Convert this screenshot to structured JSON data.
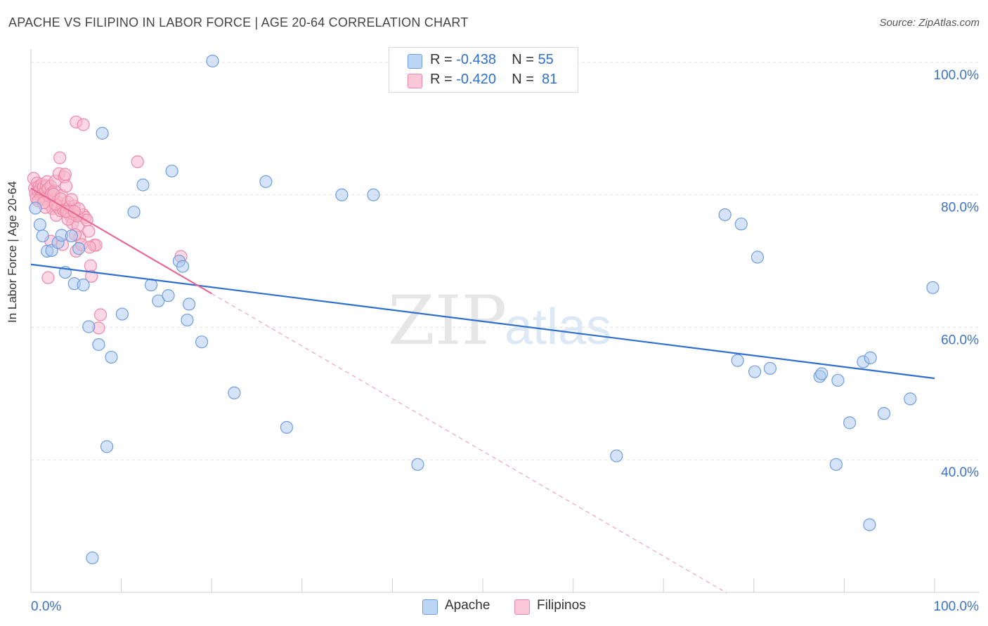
{
  "title": "APACHE VS FILIPINO IN LABOR FORCE | AGE 20-64 CORRELATION CHART",
  "source": "Source: ZipAtlas.com",
  "watermark": {
    "zip": "ZIP",
    "atlas": "atlas"
  },
  "legend": {
    "apache": {
      "r_label": "R =",
      "r_value": "-0.438",
      "n_label": "N =",
      "n_value": "55"
    },
    "filipinos": {
      "r_label": "R =",
      "r_value": "-0.420",
      "n_label": "N =",
      "n_value": "81"
    }
  },
  "bottom_legend": {
    "apache": "Apache",
    "filipinos": "Filipinos"
  },
  "colors": {
    "apache_fill": "#a9c8f0",
    "apache_stroke": "#6e9ee0",
    "apache_line": "#2f6fd0",
    "filipino_fill": "#f7b8cc",
    "filipino_stroke": "#ee88a8",
    "filipino_line": "#e86890",
    "tick_label": "#3b73c8",
    "grid": "#e2e2e2"
  },
  "chart_data": {
    "type": "scatter",
    "ylabel": "In Labor Force | Age 20-64",
    "x_tick_labels": [
      "0.0%",
      "100.0%"
    ],
    "y_tick_labels": [
      "100.0%",
      "80.0%",
      "60.0%",
      "40.0%"
    ],
    "xlim": [
      0,
      100
    ],
    "ylim": [
      20,
      102
    ],
    "y_ticks": [
      100,
      80,
      60,
      40
    ],
    "x_minor_ticks": [
      0,
      10,
      20,
      30,
      40,
      50,
      60,
      70,
      80,
      90,
      100
    ],
    "grid": true,
    "series": [
      {
        "name": "Apache",
        "trend": {
          "x": [
            0,
            100
          ],
          "y": [
            69.5,
            52.3
          ],
          "style": "solid"
        },
        "points": [
          [
            0.5,
            78
          ],
          [
            1,
            75.5
          ],
          [
            1.3,
            73.8
          ],
          [
            1.8,
            71.5
          ],
          [
            2.3,
            71.6
          ],
          [
            3,
            72.8
          ],
          [
            3.4,
            73.9
          ],
          [
            3.8,
            68.3
          ],
          [
            4.5,
            73.8
          ],
          [
            4.8,
            66.6
          ],
          [
            5.3,
            71.9
          ],
          [
            5.8,
            66.4
          ],
          [
            6.4,
            60.1
          ],
          [
            7.5,
            57.4
          ],
          [
            7.9,
            89.3
          ],
          [
            8.4,
            42.0
          ],
          [
            8.9,
            55.5
          ],
          [
            6.8,
            25.2
          ],
          [
            10.1,
            62.0
          ],
          [
            11.4,
            77.4
          ],
          [
            12.4,
            81.5
          ],
          [
            13.3,
            66.4
          ],
          [
            14.1,
            64.0
          ],
          [
            15.2,
            64.8
          ],
          [
            15.6,
            83.6
          ],
          [
            16.4,
            70.0
          ],
          [
            16.8,
            69.2
          ],
          [
            17.3,
            61.1
          ],
          [
            17.5,
            63.5
          ],
          [
            18.9,
            57.8
          ],
          [
            20.1,
            100.2
          ],
          [
            22.5,
            50.1
          ],
          [
            26,
            82
          ],
          [
            28.3,
            44.9
          ],
          [
            34.4,
            80
          ],
          [
            37.9,
            80
          ],
          [
            42.8,
            39.3
          ],
          [
            64.8,
            40.6
          ],
          [
            76.8,
            77
          ],
          [
            78.6,
            75.6
          ],
          [
            80.4,
            70.6
          ],
          [
            78.2,
            55
          ],
          [
            80.1,
            53.3
          ],
          [
            81.8,
            53.8
          ],
          [
            87.3,
            52.6
          ],
          [
            87.5,
            53.0
          ],
          [
            89.3,
            52.0
          ],
          [
            89.1,
            39.3
          ],
          [
            90.6,
            45.6
          ],
          [
            92.1,
            54.8
          ],
          [
            92.9,
            55.4
          ],
          [
            92.8,
            30.2
          ],
          [
            94.4,
            47.0
          ],
          [
            97.3,
            49.2
          ],
          [
            99.8,
            66
          ]
        ]
      },
      {
        "name": "Filipinos",
        "trend": {
          "x": [
            0,
            20
          ],
          "y": [
            81,
            65.1
          ],
          "style": "solid"
        },
        "trend_extension": {
          "x": [
            20,
            77
          ],
          "y": [
            65.1,
            19.9
          ],
          "style": "dashed"
        },
        "points": [
          [
            0.3,
            82.5
          ],
          [
            0.4,
            81
          ],
          [
            0.5,
            80.2
          ],
          [
            0.6,
            79.5
          ],
          [
            0.7,
            81.8
          ],
          [
            0.8,
            80.5
          ],
          [
            0.9,
            81.3
          ],
          [
            1,
            80.8
          ],
          [
            1.1,
            79.8
          ],
          [
            1.2,
            81.6
          ],
          [
            1.3,
            80.2
          ],
          [
            1.4,
            81.2
          ],
          [
            1.5,
            79.4
          ],
          [
            1.6,
            80.6
          ],
          [
            1.7,
            81.4
          ],
          [
            1.8,
            82
          ],
          [
            1.9,
            80.9
          ],
          [
            2,
            78.6
          ],
          [
            2.1,
            79.8
          ],
          [
            2.2,
            81.3
          ],
          [
            2.3,
            80.2
          ],
          [
            2.4,
            77.9
          ],
          [
            2.5,
            79.2
          ],
          [
            2.6,
            80.6
          ],
          [
            2.7,
            82.1
          ],
          [
            2.8,
            76.9
          ],
          [
            2.9,
            79
          ],
          [
            3,
            78.1
          ],
          [
            3.1,
            83.2
          ],
          [
            3.2,
            85.6
          ],
          [
            3.3,
            77.6
          ],
          [
            3.4,
            79.9
          ],
          [
            3.5,
            78.3
          ],
          [
            3.6,
            77.7
          ],
          [
            3.7,
            82.7
          ],
          [
            3.8,
            83.1
          ],
          [
            3.9,
            81.3
          ],
          [
            4,
            77.4
          ],
          [
            4.1,
            78.9
          ],
          [
            4.2,
            77.2
          ],
          [
            4.3,
            78.2
          ],
          [
            4.4,
            76.7
          ],
          [
            4.5,
            77.8
          ],
          [
            4.6,
            75.7
          ],
          [
            4.7,
            77.1
          ],
          [
            4.8,
            78.3
          ],
          [
            5,
            71.5
          ],
          [
            5.2,
            75.3
          ],
          [
            5.4,
            73.6
          ],
          [
            5.6,
            72.5
          ],
          [
            5.8,
            77
          ],
          [
            6,
            76.6
          ],
          [
            6.2,
            76.2
          ],
          [
            6.4,
            74.5
          ],
          [
            6.6,
            69.3
          ],
          [
            6.7,
            67.7
          ],
          [
            7,
            72.4
          ],
          [
            7.2,
            72.4
          ],
          [
            7.5,
            59.9
          ],
          [
            7.7,
            61.9
          ],
          [
            1.9,
            67.5
          ],
          [
            2.2,
            73
          ],
          [
            3.5,
            72.5
          ],
          [
            4.9,
            74
          ],
          [
            5.1,
            76.8
          ],
          [
            5.3,
            77.9
          ],
          [
            1.6,
            78.1
          ],
          [
            2.7,
            78.6
          ],
          [
            4.1,
            76.3
          ],
          [
            3.9,
            77.5
          ],
          [
            0.8,
            79.1
          ],
          [
            1.4,
            78.8
          ],
          [
            2.5,
            80.1
          ],
          [
            3.3,
            79.4
          ],
          [
            4.5,
            79.3
          ],
          [
            4.8,
            77.5
          ],
          [
            6.5,
            72.1
          ],
          [
            5,
            91
          ],
          [
            5.8,
            90.6
          ],
          [
            11.8,
            85
          ],
          [
            16.6,
            70.7
          ]
        ]
      }
    ]
  }
}
